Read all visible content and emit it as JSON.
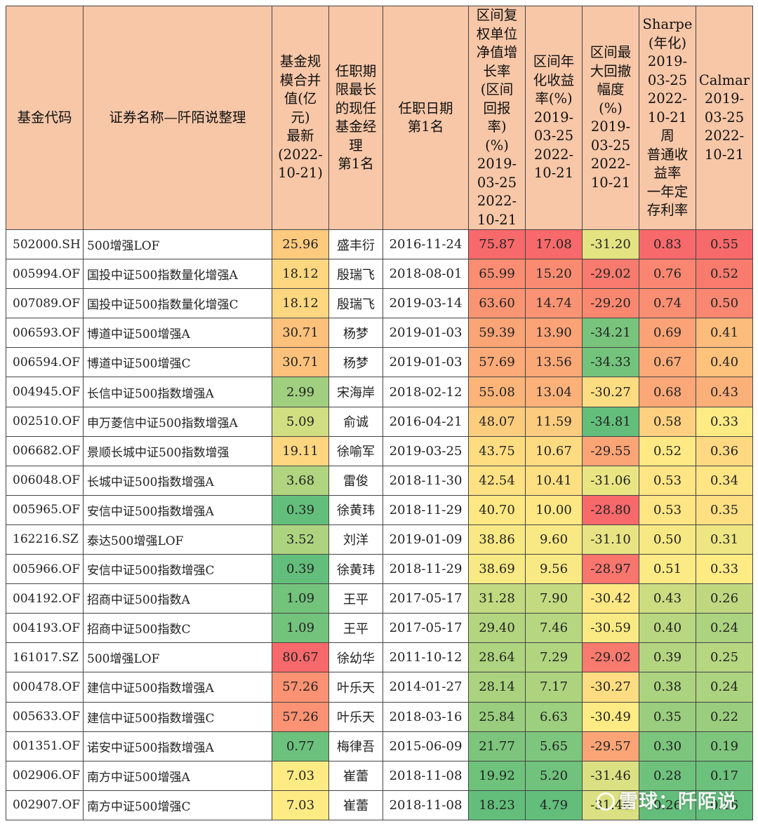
{
  "headers": [
    "基金代码",
    "证券名称—阡陌说整理",
    "基金规模合并值(亿元)最新(2022-10-21)",
    "任职期限最长的现任基金经理第1名",
    "任职日期第1名",
    "区间复权单位净值增长率（区间回报率）(%)2019-03-25 2022-10-21",
    "区间年化收益率(%)2019-03-25 2022-10-21",
    "区间最大回撤幅度(%)2019-03-25 2022-10-21",
    "Sharpe(年化)2019-03-25 2022-10-21周普通收益率一年定存利率",
    "Calmar 2019-03-25 2022-10-21"
  ],
  "header_lines": [
    [
      "基金代码"
    ],
    [
      "证券名称—阡陌说整理"
    ],
    [
      "基金规",
      "模合并",
      "值(亿",
      "元)",
      "最新",
      "(2022-",
      "10-21)"
    ],
    [
      "任职期",
      "限最长",
      "的现任",
      "基金经",
      "理",
      "第1名"
    ],
    [
      "任职日期",
      "第1名"
    ],
    [
      "区间复",
      "权单位",
      "净值增",
      "长率",
      "(区间",
      "回报",
      "率)",
      "(%)",
      "2019-",
      "03-25",
      "2022-",
      "10-21"
    ],
    [
      "区间年",
      "化收益",
      "率(%)",
      "2019-",
      "03-25",
      "2022-",
      "10-21"
    ],
    [
      "区间最",
      "大回撤",
      "幅度",
      "(%)",
      "2019-",
      "03-25",
      "2022-",
      "10-21"
    ],
    [
      "Sharpe",
      "(年化)",
      "2019-",
      "03-25",
      "2022-",
      "10-21",
      "周",
      "普通收",
      "益率",
      "一年定",
      "存利率"
    ],
    [
      "Calmar",
      "2019-",
      "03-25",
      "2022-",
      "10-21"
    ]
  ],
  "rows": [
    {
      "code": "502000.SH",
      "name": "500增强LOF",
      "scale": "25.96",
      "manager": "盛丰衍",
      "date": "2016-11-24",
      "ret": "75.87",
      "ann": "17.08",
      "mdd": "-31.20",
      "sharpe": "0.83",
      "calmar": "0.55"
    },
    {
      "code": "005994.OF",
      "name": "国投中证500指数量化增强A",
      "scale": "18.12",
      "manager": "殷瑞飞",
      "date": "2018-08-01",
      "ret": "65.99",
      "ann": "15.20",
      "mdd": "-29.02",
      "sharpe": "0.76",
      "calmar": "0.52"
    },
    {
      "code": "007089.OF",
      "name": "国投中证500指数量化增强C",
      "scale": "18.12",
      "manager": "殷瑞飞",
      "date": "2019-03-14",
      "ret": "63.60",
      "ann": "14.74",
      "mdd": "-29.20",
      "sharpe": "0.74",
      "calmar": "0.50"
    },
    {
      "code": "006593.OF",
      "name": "博道中证500增强A",
      "scale": "30.71",
      "manager": "杨梦",
      "date": "2019-01-03",
      "ret": "59.39",
      "ann": "13.90",
      "mdd": "-34.21",
      "sharpe": "0.69",
      "calmar": "0.41"
    },
    {
      "code": "006594.OF",
      "name": "博道中证500增强C",
      "scale": "30.71",
      "manager": "杨梦",
      "date": "2019-01-03",
      "ret": "57.69",
      "ann": "13.56",
      "mdd": "-34.33",
      "sharpe": "0.67",
      "calmar": "0.40"
    },
    {
      "code": "004945.OF",
      "name": "长信中证500指数增强A",
      "scale": "2.99",
      "manager": "宋海岸",
      "date": "2018-02-12",
      "ret": "55.08",
      "ann": "13.04",
      "mdd": "-30.27",
      "sharpe": "0.68",
      "calmar": "0.43"
    },
    {
      "code": "002510.OF",
      "name": "申万菱信中证500指数增强A",
      "scale": "5.09",
      "manager": "俞诚",
      "date": "2016-04-21",
      "ret": "48.07",
      "ann": "11.59",
      "mdd": "-34.81",
      "sharpe": "0.58",
      "calmar": "0.33"
    },
    {
      "code": "006682.OF",
      "name": "景顺长城中证500指数增强",
      "scale": "19.11",
      "manager": "徐喻军",
      "date": "2019-03-25",
      "ret": "43.75",
      "ann": "10.67",
      "mdd": "-29.55",
      "sharpe": "0.52",
      "calmar": "0.36"
    },
    {
      "code": "006048.OF",
      "name": "长城中证500指数增强A",
      "scale": "3.68",
      "manager": "雷俊",
      "date": "2018-11-30",
      "ret": "42.54",
      "ann": "10.41",
      "mdd": "-31.06",
      "sharpe": "0.53",
      "calmar": "0.34"
    },
    {
      "code": "005965.OF",
      "name": "安信中证500指数增强A",
      "scale": "0.39",
      "manager": "徐黄玮",
      "date": "2018-11-29",
      "ret": "40.70",
      "ann": "10.00",
      "mdd": "-28.80",
      "sharpe": "0.53",
      "calmar": "0.35"
    },
    {
      "code": "162216.SZ",
      "name": "泰达500增强LOF",
      "scale": "3.52",
      "manager": "刘洋",
      "date": "2019-01-09",
      "ret": "38.86",
      "ann": "9.60",
      "mdd": "-31.10",
      "sharpe": "0.50",
      "calmar": "0.31"
    },
    {
      "code": "005966.OF",
      "name": "安信中证500指数增强C",
      "scale": "0.39",
      "manager": "徐黄玮",
      "date": "2018-11-29",
      "ret": "38.69",
      "ann": "9.56",
      "mdd": "-28.97",
      "sharpe": "0.51",
      "calmar": "0.33"
    },
    {
      "code": "004192.OF",
      "name": "招商中证500指数A",
      "scale": "1.09",
      "manager": "王平",
      "date": "2017-05-17",
      "ret": "31.28",
      "ann": "7.90",
      "mdd": "-30.42",
      "sharpe": "0.43",
      "calmar": "0.26"
    },
    {
      "code": "004193.OF",
      "name": "招商中证500指数C",
      "scale": "1.09",
      "manager": "王平",
      "date": "2017-05-17",
      "ret": "29.40",
      "ann": "7.46",
      "mdd": "-30.59",
      "sharpe": "0.40",
      "calmar": "0.24"
    },
    {
      "code": "161017.SZ",
      "name": "500增强LOF",
      "scale": "80.67",
      "manager": "徐幼华",
      "date": "2011-10-12",
      "ret": "28.64",
      "ann": "7.29",
      "mdd": "-29.02",
      "sharpe": "0.39",
      "calmar": "0.25"
    },
    {
      "code": "000478.OF",
      "name": "建信中证500指数增强A",
      "scale": "57.26",
      "manager": "叶乐天",
      "date": "2014-01-27",
      "ret": "28.14",
      "ann": "7.17",
      "mdd": "-30.27",
      "sharpe": "0.38",
      "calmar": "0.24"
    },
    {
      "code": "005633.OF",
      "name": "建信中证500指数增强C",
      "scale": "57.26",
      "manager": "叶乐天",
      "date": "2018-03-16",
      "ret": "25.84",
      "ann": "6.63",
      "mdd": "-30.49",
      "sharpe": "0.35",
      "calmar": "0.22"
    },
    {
      "code": "001351.OF",
      "name": "诺安中证500指数增强A",
      "scale": "0.77",
      "manager": "梅律吾",
      "date": "2015-06-09",
      "ret": "21.77",
      "ann": "5.65",
      "mdd": "-29.57",
      "sharpe": "0.30",
      "calmar": "0.19"
    },
    {
      "code": "002906.OF",
      "name": "南方中证500增强A",
      "scale": "7.03",
      "manager": "崔蕾",
      "date": "2018-11-08",
      "ret": "19.92",
      "ann": "5.20",
      "mdd": "-31.46",
      "sharpe": "0.28",
      "calmar": "0.17"
    },
    {
      "code": "002907.OF",
      "name": "南方中证500增强C",
      "scale": "7.03",
      "manager": "崔蕾",
      "date": "2018-11-08",
      "ret": "18.23",
      "ann": "4.79",
      "mdd": "-31.46",
      "sharpe": "0.26",
      "calmar": "0.16"
    }
  ],
  "colors": {
    "header_bg": "#f7c7a8",
    "scale_low": "#63be7b",
    "scale_mid": "#ffeb84",
    "scale_high": "#f8696b"
  },
  "watermark": "雪球：阡陌说"
}
